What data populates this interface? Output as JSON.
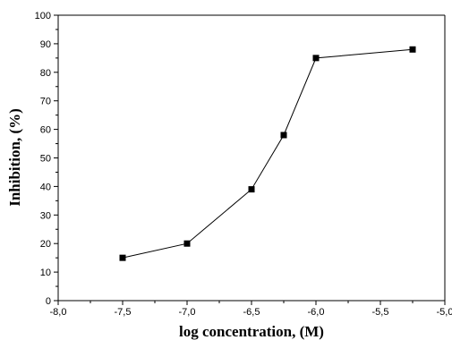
{
  "chart_data": {
    "type": "line",
    "title": "",
    "xlabel": "log concentration, (M)",
    "ylabel": "Inhibition, (%)",
    "xlim": [
      -8.0,
      -5.0
    ],
    "ylim": [
      0,
      100
    ],
    "x_ticks": [
      -8.0,
      -7.5,
      -7.0,
      -6.5,
      -6.0,
      -5.5,
      -5.0
    ],
    "x_tick_labels": [
      "-8,0",
      "-7,5",
      "-7,0",
      "-6,5",
      "-6,0",
      "-5,5",
      "-5,0"
    ],
    "y_ticks": [
      0,
      10,
      20,
      30,
      40,
      50,
      60,
      70,
      80,
      90,
      100
    ],
    "y_tick_labels": [
      "0",
      "10",
      "20",
      "30",
      "40",
      "50",
      "60",
      "70",
      "80",
      "90",
      "100"
    ],
    "grid": false,
    "legend": "none",
    "series": [
      {
        "color": "#000000",
        "marker": "square",
        "x": [
          -7.5,
          -7.0,
          -6.5,
          -6.25,
          -6.0,
          -5.25
        ],
        "y": [
          15,
          20,
          39,
          58,
          85,
          88
        ]
      }
    ]
  }
}
